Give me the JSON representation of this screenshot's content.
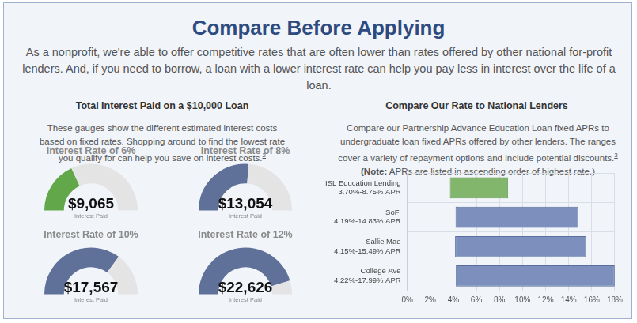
{
  "page": {
    "title": "Compare Before Applying",
    "intro": "As a nonprofit, we're able to offer competitive rates that are often lower than rates offered by other national for-profit lenders. And, if you need to borrow, a loan with a lower interest rate can help you pay less in interest over the life of a loan.",
    "left": {
      "heading": "Total Interest Paid on a $10,000 Loan",
      "description": "These gauges show the different estimated interest costs based on fixed rates. Shopping around to find the lowest rate you qualify for can help you save on interest costs.",
      "footnote": "2"
    },
    "right": {
      "heading": "Compare Our Rate to National Lenders",
      "description": "Compare our Partnership Advance Education Loan fixed APRs to undergraduate loan fixed APRs offered by other lenders. The ranges cover a variety of repayment options and include potential discounts.",
      "footnote": "3",
      "note_label": "(Note:",
      "note": "APRs are listed in ascending order of highest rate.)"
    }
  },
  "chart_data": [
    {
      "type": "gauge",
      "title": "Interest Rate of 6%",
      "values": [
        9065
      ],
      "value_labels": [
        "$9,065"
      ],
      "subtitle": "Interest Paid",
      "ylim": [
        0,
        25000
      ],
      "color": "#62a84a"
    },
    {
      "type": "gauge",
      "title": "Interest Rate of 8%",
      "values": [
        13054
      ],
      "value_labels": [
        "$13,054"
      ],
      "subtitle": "Interest Paid",
      "ylim": [
        0,
        25000
      ],
      "color": "#5f7099"
    },
    {
      "type": "gauge",
      "title": "Interest Rate of 10%",
      "values": [
        17567
      ],
      "value_labels": [
        "$17,567"
      ],
      "subtitle": "Interest Paid",
      "ylim": [
        0,
        25000
      ],
      "color": "#5f7099"
    },
    {
      "type": "gauge",
      "title": "Interest Rate of 12%",
      "values": [
        22626
      ],
      "value_labels": [
        "$22,626"
      ],
      "subtitle": "Interest Paid",
      "ylim": [
        0,
        25000
      ],
      "color": "#5f7099"
    },
    {
      "type": "bar",
      "orientation": "horizontal",
      "categories": [
        [
          "ISL Education Lending",
          "3.70%-8.75% APR"
        ],
        [
          "SoFi",
          "4.19%-14.83% APR"
        ],
        [
          "Sallie Mae",
          "4.15%-15.49% APR"
        ],
        [
          "College Ave",
          "4.22%-17.99% APR"
        ]
      ],
      "values": [
        [
          3.7,
          8.75
        ],
        [
          4.19,
          14.83
        ],
        [
          4.15,
          15.49
        ],
        [
          4.22,
          17.99
        ]
      ],
      "colors": [
        "#82b66c",
        "#7d90bd",
        "#7d90bd",
        "#7d90bd"
      ],
      "xlim": [
        0,
        18
      ],
      "xticks": [
        {
          "value": 0,
          "label": "0%"
        },
        {
          "value": 2,
          "label": "2%"
        },
        {
          "value": 4,
          "label": "4%"
        },
        {
          "value": 6,
          "label": "6%"
        },
        {
          "value": 8,
          "label": "8%"
        },
        {
          "value": 10,
          "label": "10%"
        },
        {
          "value": 12,
          "label": "12%"
        },
        {
          "value": 14,
          "label": "14%"
        },
        {
          "value": 16,
          "label": "16%"
        },
        {
          "value": 18,
          "label": "18%"
        }
      ],
      "grid": true
    }
  ]
}
